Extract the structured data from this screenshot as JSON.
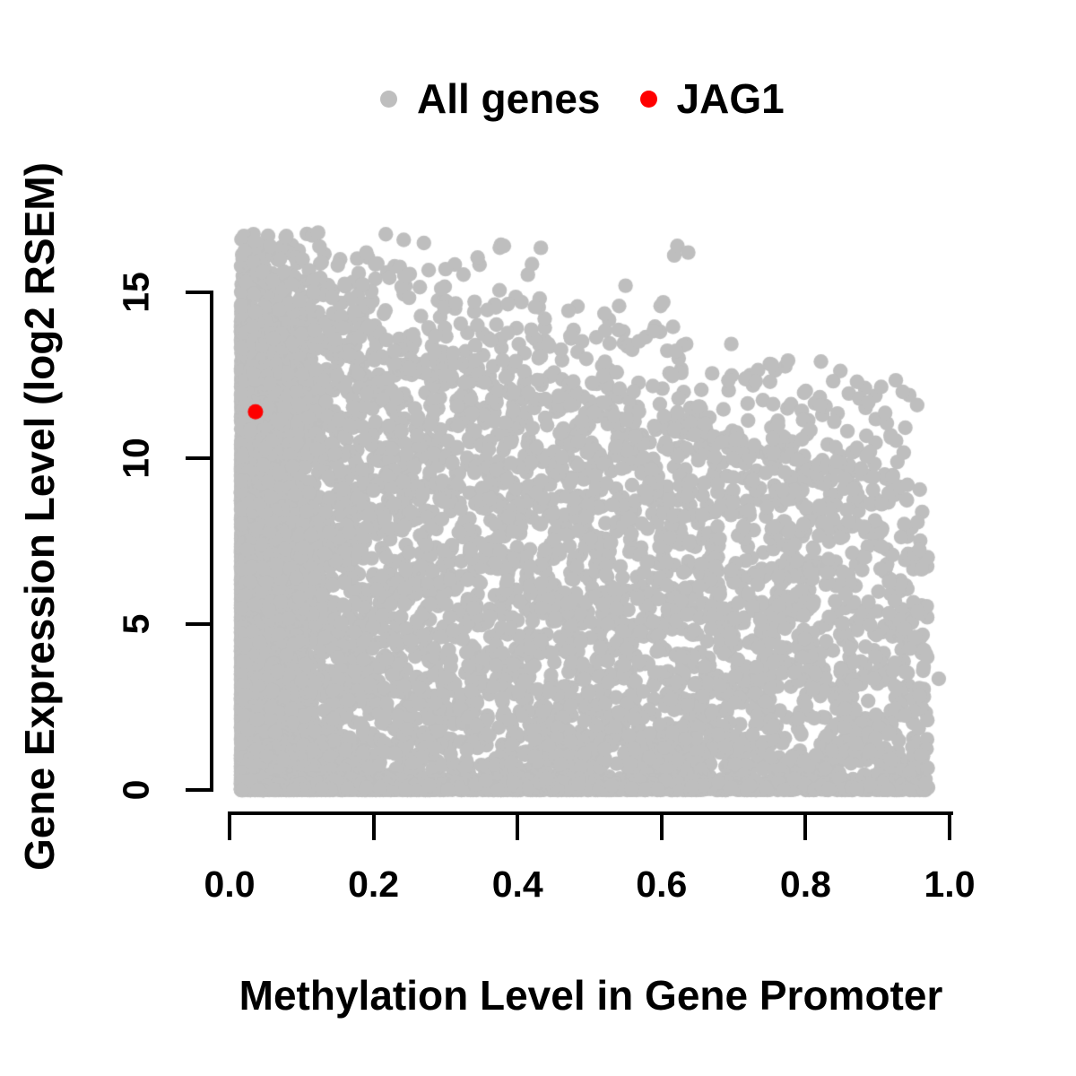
{
  "figure": {
    "legend": {
      "items": [
        {
          "label": "All genes",
          "color": "#bebebe",
          "marker": "circle"
        },
        {
          "label": "JAG1",
          "color": "#ff0000",
          "marker": "circle"
        }
      ]
    },
    "x_axis": {
      "title": "Methylation Level in Gene Promoter",
      "tick_labels": [
        "0.0",
        "0.2",
        "0.4",
        "0.6",
        "0.8",
        "1.0"
      ]
    },
    "y_axis": {
      "title": "Gene Expression Level (log2 RSEM)",
      "tick_labels": [
        "0",
        "5",
        "10",
        "15"
      ]
    }
  },
  "chart_data": {
    "type": "scatter",
    "title": "",
    "xlabel": "Methylation Level in Gene Promoter",
    "ylabel": "Gene Expression Level (log2 RSEM)",
    "xlim": [
      -0.02,
      1.02
    ],
    "ylim": [
      -0.5,
      17.2
    ],
    "x_ticks": [
      0,
      0.2,
      0.4,
      0.6,
      0.8,
      1.0
    ],
    "y_ticks": [
      0,
      5,
      10,
      15
    ],
    "grid": false,
    "legend_position": "top-center",
    "axis_color": "#000000",
    "background_color": "#ffffff",
    "series": [
      {
        "name": "All genes",
        "color": "#bebebe",
        "marker": "circle",
        "marker_radius_px": 8.2,
        "summary": "Dense cloud of ~20000 genes; very dense vertical band at methylation 0.02-0.15 spanning expression 0-14.5; maximum expression declines as methylation rises (top edge ~13.9 at x=0 down to ~9 at x=1); dense band of near-zero expression across all methylation levels; sparse scattered outliers up to ~16.8 at low methylation; points thin out beyond methylation ~0.9 (max ~0.985)",
        "x_range": [
          0.016,
          0.985
        ],
        "y_range": [
          0,
          16.85
        ],
        "generator": {
          "seed": 1337,
          "top_edge": {
            "intercept": 13.9,
            "slope": -5.0
          },
          "components": [
            {
              "n": 2000,
              "x": {
                "base": 0.016,
                "span": 0.1,
                "pow": 2.0
              },
              "y": {
                "type": "frac",
                "top": 14.3,
                "pow": 1.15
              }
            },
            {
              "n": 5000,
              "x": {
                "base": 0.016,
                "span": 0.954,
                "pow": 1.7
              },
              "y": {
                "type": "frac",
                "use_edge": true,
                "pow": 1.25
              }
            },
            {
              "n": 1300,
              "x": {
                "base": 0.016,
                "span": 0.954,
                "pow": 1.45
              },
              "y": {
                "type": "band",
                "base": 0.0,
                "span": 0.35,
                "pow": 2.5
              }
            },
            {
              "n": 700,
              "x": {
                "base": 0.016,
                "span": 0.93,
                "pow": 1.6
              },
              "y": {
                "type": "above",
                "use_edge": true,
                "span": 3.2,
                "pow": 2.0
              }
            },
            {
              "n": 60,
              "x": {
                "base": 0.016,
                "span": 0.62,
                "pow": 2.0
              },
              "y": {
                "type": "band",
                "base": 14.4,
                "span": 2.45,
                "pow": 1.2
              }
            }
          ]
        },
        "notable_points": [
          [
            0.02,
            16.7
          ],
          [
            0.123,
            16.8
          ],
          [
            0.217,
            16.75
          ],
          [
            0.381,
            16.4
          ],
          [
            0.622,
            16.4
          ],
          [
            0.637,
            16.2
          ],
          [
            0.07,
            16.0
          ],
          [
            0.19,
            16.2
          ],
          [
            0.3,
            15.7
          ],
          [
            0.42,
            15.85
          ],
          [
            0.55,
            15.2
          ],
          [
            0.128,
            15.9
          ],
          [
            0.035,
            16.55
          ],
          [
            0.905,
            12.15
          ],
          [
            0.935,
            12.0
          ],
          [
            0.955,
            11.6
          ],
          [
            0.969,
            4.0
          ],
          [
            0.985,
            3.35
          ],
          [
            0.96,
            1.05
          ]
        ]
      },
      {
        "name": "JAG1",
        "color": "#ff0000",
        "marker": "circle",
        "marker_radius_px": 8.5,
        "points": [
          [
            0.036,
            11.4
          ]
        ]
      }
    ]
  }
}
